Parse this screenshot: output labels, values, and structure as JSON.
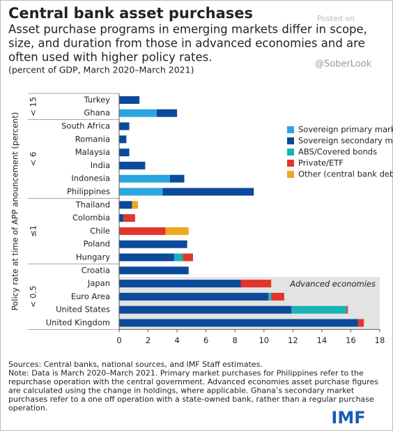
{
  "chart_data": {
    "type": "stacked-bar",
    "title": "Central bank asset purchases",
    "subtitle": [
      "Asset purchase programs in emerging markets differ in scope,",
      "size, and duration from those in advanced economies and are",
      "often used with higher policy rates."
    ],
    "unit": "(percent of GDP, March 2020–March 2021)",
    "watermark": [
      "Posted on",
      "@SoberLook"
    ],
    "y_axis_label": "Policy rate at time of APP anouncement (percent)",
    "groups": [
      {
        "label": "< 15",
        "categories": [
          "Turkey",
          "Ghana"
        ]
      },
      {
        "label": "< 6",
        "categories": [
          "South Africa",
          "Romania",
          "Malaysia",
          "India",
          "Indonesia",
          "Philippines"
        ]
      },
      {
        "label": "≤1",
        "categories": [
          "Thailand",
          "Colombia",
          "Chile",
          "Poland",
          "Hungary"
        ]
      },
      {
        "label": "< 0.5",
        "categories": [
          "Croatia",
          "Japan",
          "Euro Area",
          "United States",
          "United Kingdom"
        ]
      }
    ],
    "series": [
      {
        "name": "Sovereign primary market",
        "color": "#2aa6df",
        "values": [
          null,
          2.6,
          null,
          null,
          null,
          null,
          3.5,
          3.0,
          null,
          null,
          null,
          null,
          null,
          null,
          null,
          null,
          null,
          null
        ]
      },
      {
        "name": "Sovereign secondary market",
        "color": "#0b4a9b",
        "values": [
          1.4,
          1.4,
          0.7,
          0.5,
          0.7,
          1.8,
          1.0,
          6.3,
          0.9,
          0.3,
          null,
          4.7,
          3.8,
          4.8,
          8.4,
          10.3,
          11.9,
          16.5
        ]
      },
      {
        "name": "ABS/Covered bonds",
        "color": "#17b3b6",
        "values": [
          null,
          null,
          null,
          null,
          null,
          null,
          null,
          null,
          null,
          null,
          null,
          null,
          0.6,
          null,
          null,
          0.2,
          3.8,
          null
        ]
      },
      {
        "name": "Private/ETF",
        "color": "#e0362c",
        "values": [
          null,
          null,
          null,
          null,
          null,
          null,
          null,
          null,
          null,
          0.8,
          3.2,
          null,
          0.7,
          null,
          2.1,
          0.9,
          0.1,
          0.4
        ]
      },
      {
        "name": "Other (central bank debt)",
        "color": "#f2a71b",
        "values": [
          null,
          null,
          null,
          null,
          null,
          null,
          null,
          null,
          0.4,
          null,
          1.6,
          null,
          null,
          null,
          null,
          null,
          null,
          null
        ]
      }
    ],
    "annotation": "Advanced economies",
    "xlim": [
      0,
      18
    ],
    "xticks": [
      0,
      2,
      4,
      6,
      8,
      10,
      12,
      14,
      16,
      18
    ],
    "legend": "upper right",
    "notes": [
      "Sources: Central banks, national sources, and IMF Staff estimates.",
      "Note: Data is March 2020–March 2021. Primary market purchases for Philippines refer to the",
      "repurchase operation with the central government. Advanced economies asset purchase figures",
      "are calculated using the change in holdings, where applicable. Ghana’s secondary market",
      "purchases refer to a one off operation with a state-owned bank, rather than a regular purchase",
      "operation."
    ],
    "logo": "IMF"
  }
}
